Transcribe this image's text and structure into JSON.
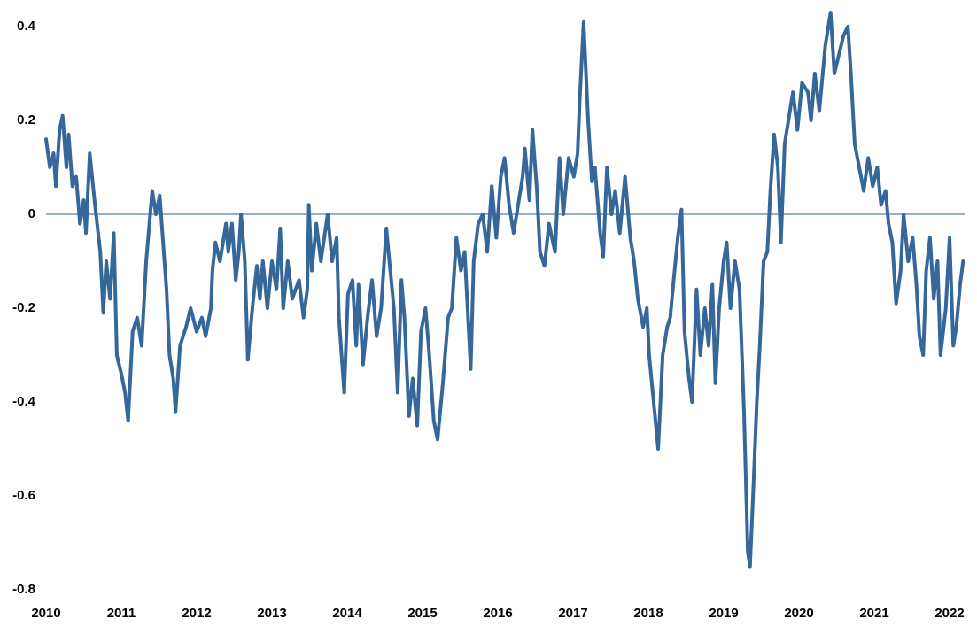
{
  "chart_data": {
    "type": "line",
    "color": "#35679a",
    "xlim": [
      2010,
      2022.3
    ],
    "xticks": [
      2010,
      2011,
      2012,
      2013,
      2014,
      2015,
      2016,
      2017,
      2018,
      2019,
      2020,
      2021,
      2022
    ],
    "ylim": [
      -0.8,
      0.44
    ],
    "yticks": [
      0.4,
      0.2,
      0,
      -0.2,
      -0.4,
      -0.6,
      -0.8
    ],
    "grid": false,
    "x": [
      2010.0,
      2010.05,
      2010.1,
      2010.13,
      2010.18,
      2010.22,
      2010.27,
      2010.3,
      2010.35,
      2010.4,
      2010.45,
      2010.5,
      2010.53,
      2010.58,
      2010.65,
      2010.72,
      2010.76,
      2010.8,
      2010.85,
      2010.9,
      2010.94,
      2011.0,
      2011.05,
      2011.09,
      2011.15,
      2011.21,
      2011.27,
      2011.33,
      2011.41,
      2011.46,
      2011.51,
      2011.55,
      2011.6,
      2011.64,
      2011.69,
      2011.72,
      2011.78,
      2011.86,
      2011.92,
      2012.0,
      2012.07,
      2012.12,
      2012.19,
      2012.21,
      2012.25,
      2012.31,
      2012.39,
      2012.42,
      2012.47,
      2012.52,
      2012.56,
      2012.59,
      2012.64,
      2012.68,
      2012.74,
      2012.8,
      2012.84,
      2012.88,
      2012.94,
      2013.0,
      2013.06,
      2013.11,
      2013.15,
      2013.21,
      2013.27,
      2013.36,
      2013.42,
      2013.47,
      2013.49,
      2013.53,
      2013.59,
      2013.65,
      2013.74,
      2013.8,
      2013.86,
      2013.89,
      2013.96,
      2014.01,
      2014.07,
      2014.12,
      2014.15,
      2014.21,
      2014.27,
      2014.33,
      2014.39,
      2014.45,
      2014.52,
      2014.56,
      2014.62,
      2014.67,
      2014.72,
      2014.76,
      2014.82,
      2014.87,
      2014.93,
      2014.98,
      2015.04,
      2015.09,
      2015.15,
      2015.2,
      2015.27,
      2015.34,
      2015.39,
      2015.45,
      2015.51,
      2015.56,
      2015.64,
      2015.68,
      2015.74,
      2015.8,
      2015.86,
      2015.92,
      2015.98,
      2016.04,
      2016.09,
      2016.15,
      2016.21,
      2016.27,
      2016.33,
      2016.36,
      2016.42,
      2016.46,
      2016.52,
      2016.56,
      2016.62,
      2016.68,
      2016.76,
      2016.82,
      2016.87,
      2016.94,
      2017.01,
      2017.06,
      2017.09,
      2017.14,
      2017.2,
      2017.25,
      2017.29,
      2017.36,
      2017.4,
      2017.45,
      2017.51,
      2017.56,
      2017.62,
      2017.69,
      2017.76,
      2017.81,
      2017.86,
      2017.93,
      2017.98,
      2018.01,
      2018.07,
      2018.13,
      2018.19,
      2018.25,
      2018.29,
      2018.33,
      2018.39,
      2018.44,
      2018.48,
      2018.54,
      2018.58,
      2018.64,
      2018.69,
      2018.75,
      2018.8,
      2018.85,
      2018.89,
      2018.94,
      2019.0,
      2019.04,
      2019.09,
      2019.15,
      2019.21,
      2019.27,
      2019.32,
      2019.35,
      2019.39,
      2019.44,
      2019.48,
      2019.53,
      2019.58,
      2019.62,
      2019.67,
      2019.72,
      2019.76,
      2019.81,
      2019.86,
      2019.92,
      2019.98,
      2020.04,
      2020.12,
      2020.16,
      2020.21,
      2020.27,
      2020.35,
      2020.42,
      2020.47,
      2020.53,
      2020.59,
      2020.65,
      2020.69,
      2020.74,
      2020.8,
      2020.86,
      2020.92,
      2020.98,
      2021.04,
      2021.09,
      2021.15,
      2021.19,
      2021.24,
      2021.29,
      2021.35,
      2021.39,
      2021.45,
      2021.51,
      2021.56,
      2021.6,
      2021.65,
      2021.69,
      2021.74,
      2021.79,
      2021.84,
      2021.88,
      2021.95,
      2022.0,
      2022.05,
      2022.09,
      2022.14,
      2022.18
    ],
    "values": [
      0.16,
      0.1,
      0.13,
      0.06,
      0.18,
      0.21,
      0.1,
      0.17,
      0.06,
      0.08,
      -0.02,
      0.03,
      -0.04,
      0.13,
      0.02,
      -0.08,
      -0.21,
      -0.1,
      -0.18,
      -0.04,
      -0.3,
      -0.34,
      -0.38,
      -0.44,
      -0.25,
      -0.22,
      -0.28,
      -0.1,
      0.05,
      0.0,
      0.04,
      -0.05,
      -0.16,
      -0.3,
      -0.35,
      -0.42,
      -0.28,
      -0.24,
      -0.2,
      -0.25,
      -0.22,
      -0.26,
      -0.2,
      -0.12,
      -0.06,
      -0.1,
      -0.02,
      -0.08,
      -0.02,
      -0.14,
      -0.08,
      0.0,
      -0.1,
      -0.31,
      -0.2,
      -0.11,
      -0.18,
      -0.1,
      -0.2,
      -0.1,
      -0.16,
      -0.03,
      -0.2,
      -0.1,
      -0.18,
      -0.14,
      -0.22,
      -0.16,
      0.02,
      -0.12,
      -0.02,
      -0.1,
      0.0,
      -0.1,
      -0.05,
      -0.22,
      -0.38,
      -0.17,
      -0.14,
      -0.28,
      -0.15,
      -0.32,
      -0.22,
      -0.14,
      -0.26,
      -0.2,
      -0.03,
      -0.1,
      -0.2,
      -0.38,
      -0.14,
      -0.22,
      -0.43,
      -0.35,
      -0.45,
      -0.25,
      -0.2,
      -0.3,
      -0.44,
      -0.48,
      -0.36,
      -0.22,
      -0.2,
      -0.05,
      -0.12,
      -0.08,
      -0.33,
      -0.1,
      -0.02,
      0.0,
      -0.08,
      0.06,
      -0.05,
      0.08,
      0.12,
      0.02,
      -0.04,
      0.02,
      0.08,
      0.14,
      0.03,
      0.18,
      0.05,
      -0.08,
      -0.11,
      -0.02,
      -0.08,
      0.12,
      0.0,
      0.12,
      0.08,
      0.13,
      0.25,
      0.41,
      0.2,
      0.07,
      0.1,
      -0.04,
      -0.09,
      0.1,
      0.0,
      0.05,
      -0.04,
      0.08,
      -0.05,
      -0.1,
      -0.18,
      -0.24,
      -0.2,
      -0.3,
      -0.4,
      -0.5,
      -0.3,
      -0.24,
      -0.22,
      -0.15,
      -0.05,
      0.01,
      -0.25,
      -0.35,
      -0.4,
      -0.16,
      -0.3,
      -0.2,
      -0.28,
      -0.15,
      -0.36,
      -0.2,
      -0.1,
      -0.06,
      -0.2,
      -0.1,
      -0.16,
      -0.42,
      -0.72,
      -0.75,
      -0.6,
      -0.4,
      -0.28,
      -0.1,
      -0.08,
      0.05,
      0.17,
      0.1,
      -0.06,
      0.15,
      0.2,
      0.26,
      0.18,
      0.28,
      0.26,
      0.2,
      0.3,
      0.22,
      0.36,
      0.43,
      0.3,
      0.34,
      0.38,
      0.4,
      0.3,
      0.15,
      0.1,
      0.05,
      0.12,
      0.06,
      0.1,
      0.02,
      0.05,
      -0.02,
      -0.06,
      -0.19,
      -0.12,
      0.0,
      -0.1,
      -0.05,
      -0.15,
      -0.26,
      -0.3,
      -0.12,
      -0.05,
      -0.18,
      -0.1,
      -0.3,
      -0.2,
      -0.05,
      -0.28,
      -0.24,
      -0.15,
      -0.1
    ]
  }
}
